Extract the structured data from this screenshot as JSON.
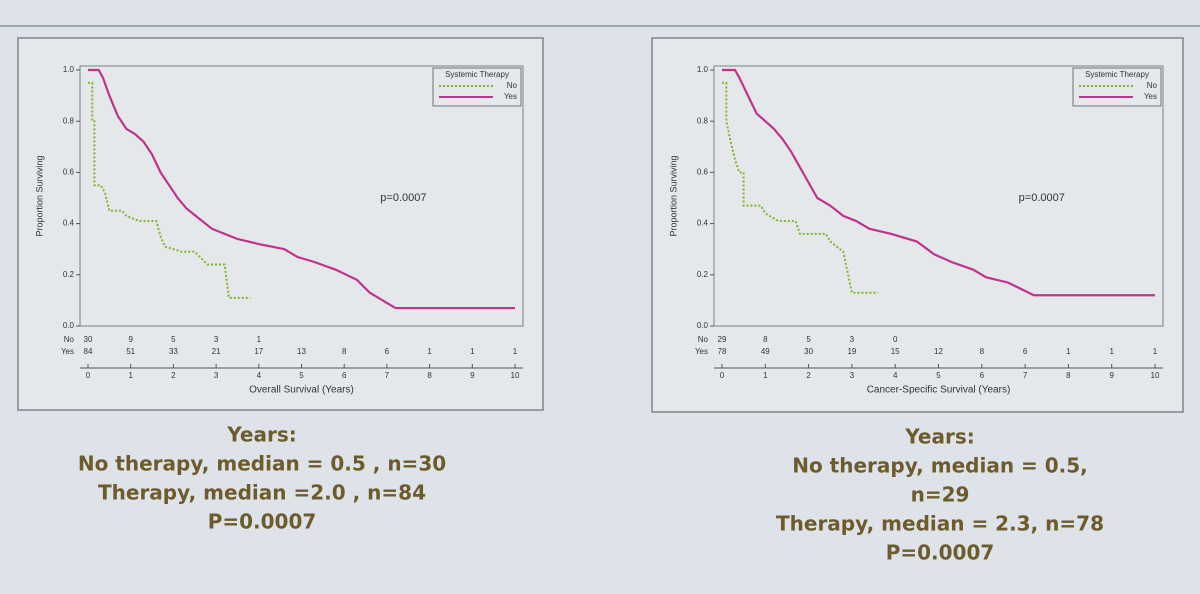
{
  "chart_data": [
    {
      "type": "line",
      "xlabel": "Overall Survival (Years)",
      "ylabel": "Proportion Surviving",
      "annotation": "p=0.0007",
      "legend_title": "Systemic Therapy",
      "legend": "upper right",
      "xlim": [
        0,
        10
      ],
      "xticks": [
        0,
        1,
        2,
        3,
        4,
        5,
        6,
        7,
        8,
        9,
        10
      ],
      "ylim": [
        0,
        1
      ],
      "yticks": [
        {
          "value": 0,
          "label": "0.0"
        },
        0.2,
        0.4,
        0.6,
        0.8,
        {
          "value": 1,
          "label": "1.0"
        }
      ],
      "series": [
        {
          "name": "No",
          "color": "#7fb62a",
          "dashed": true,
          "x": [
            0,
            0.1,
            0.1,
            0.15,
            0.15,
            0.3,
            0.4,
            0.5,
            0.8,
            0.9,
            1.2,
            1.6,
            1.7,
            1.8,
            2.2,
            2.5,
            2.8,
            3.2,
            3.3,
            3.8
          ],
          "values": [
            0.95,
            0.95,
            0.8,
            0.8,
            0.55,
            0.55,
            0.52,
            0.45,
            0.45,
            0.43,
            0.41,
            0.41,
            0.35,
            0.31,
            0.29,
            0.29,
            0.24,
            0.24,
            0.11,
            0.11
          ]
        },
        {
          "name": "Yes",
          "color": "#c0338a",
          "x": [
            0,
            0.25,
            0.35,
            0.5,
            0.7,
            0.9,
            1.1,
            1.3,
            1.5,
            1.7,
            1.9,
            2.1,
            2.3,
            2.6,
            2.9,
            3.2,
            3.5,
            4.0,
            4.6,
            4.9,
            5.3,
            5.8,
            6.3,
            6.6,
            7.2,
            10
          ],
          "values": [
            1.0,
            1.0,
            0.97,
            0.9,
            0.82,
            0.77,
            0.75,
            0.72,
            0.67,
            0.6,
            0.55,
            0.5,
            0.46,
            0.42,
            0.38,
            0.36,
            0.34,
            0.32,
            0.3,
            0.27,
            0.25,
            0.22,
            0.18,
            0.13,
            0.07,
            0.07
          ]
        }
      ],
      "at_risk": {
        "rows": [
          "No",
          "Yes"
        ],
        "No": [
          "30",
          "9",
          "5",
          "3",
          "1"
        ],
        "Yes": [
          "84",
          "51",
          "33",
          "21",
          "17",
          "13",
          "8",
          "6",
          "1",
          "1",
          "1"
        ]
      },
      "caption": [
        "Years:",
        "No therapy, median = 0.5 , n=30",
        "Therapy, median =2.0 , n=84",
        "P=0.0007"
      ]
    },
    {
      "type": "line",
      "xlabel": "Cancer-Specific Survival (Years)",
      "ylabel": "Proportion Surviving",
      "annotation": "p=0.0007",
      "legend_title": "Systemic Therapy",
      "legend": "upper right",
      "xlim": [
        0,
        10
      ],
      "xticks": [
        0,
        1,
        2,
        3,
        4,
        5,
        6,
        7,
        8,
        9,
        10
      ],
      "ylim": [
        0,
        1
      ],
      "yticks": [
        {
          "value": 0,
          "label": "0.0"
        },
        0.2,
        0.4,
        0.6,
        0.8,
        {
          "value": 1,
          "label": "1.0"
        }
      ],
      "series": [
        {
          "name": "No",
          "color": "#7fb62a",
          "dashed": true,
          "x": [
            0,
            0.1,
            0.1,
            0.2,
            0.3,
            0.4,
            0.5,
            0.5,
            0.9,
            1.0,
            1.3,
            1.7,
            1.8,
            2.4,
            2.5,
            2.8,
            3.0,
            3.6
          ],
          "values": [
            0.95,
            0.95,
            0.8,
            0.72,
            0.65,
            0.6,
            0.6,
            0.47,
            0.47,
            0.44,
            0.41,
            0.41,
            0.36,
            0.36,
            0.33,
            0.29,
            0.13,
            0.13
          ]
        },
        {
          "name": "Yes",
          "color": "#c0338a",
          "x": [
            0,
            0.3,
            0.4,
            0.6,
            0.8,
            1.0,
            1.2,
            1.4,
            1.6,
            1.8,
            2.0,
            2.2,
            2.5,
            2.8,
            3.1,
            3.4,
            3.9,
            4.5,
            4.9,
            5.3,
            5.8,
            6.1,
            6.6,
            7.2,
            10
          ],
          "values": [
            1.0,
            1.0,
            0.97,
            0.9,
            0.83,
            0.8,
            0.77,
            0.73,
            0.68,
            0.62,
            0.56,
            0.5,
            0.47,
            0.43,
            0.41,
            0.38,
            0.36,
            0.33,
            0.28,
            0.25,
            0.22,
            0.19,
            0.17,
            0.12,
            0.12
          ]
        }
      ],
      "at_risk": {
        "rows": [
          "No",
          "Yes"
        ],
        "No": [
          "29",
          "8",
          "5",
          "3",
          "0"
        ],
        "Yes": [
          "78",
          "49",
          "30",
          "19",
          "15",
          "12",
          "8",
          "6",
          "1",
          "1",
          "1"
        ]
      },
      "caption": [
        "Years:",
        "No therapy, median = 0.5,",
        "n=29",
        "Therapy, median = 2.3, n=78",
        "P=0.0007"
      ]
    }
  ]
}
